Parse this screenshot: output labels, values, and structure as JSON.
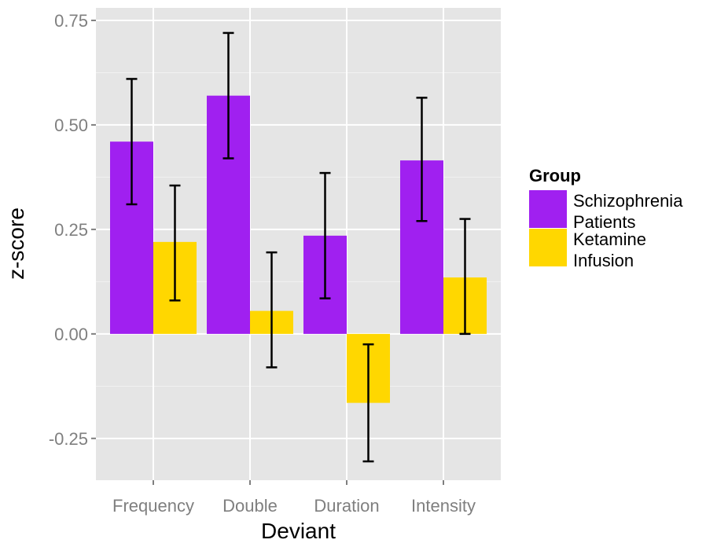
{
  "chart_data": {
    "type": "bar",
    "xlabel": "Deviant",
    "ylabel": "z-score",
    "categories": [
      "Frequency",
      "Double",
      "Duration",
      "Intensity"
    ],
    "ylim": [
      -0.35,
      0.78
    ],
    "yticks": [
      -0.25,
      0.0,
      0.25,
      0.5,
      0.75
    ],
    "ytick_labels": [
      "-0.25",
      "0.00",
      "0.25",
      "0.50",
      "0.75"
    ],
    "grid": true,
    "legend": {
      "title": "Group",
      "placement": "right"
    },
    "series": [
      {
        "name_lines": [
          "Schizophrenia",
          "Patients"
        ],
        "color": "#a020f0",
        "values": [
          0.46,
          0.57,
          0.235,
          0.415
        ],
        "error_low": [
          0.31,
          0.42,
          0.085,
          0.27
        ],
        "error_high": [
          0.61,
          0.72,
          0.385,
          0.565
        ]
      },
      {
        "name_lines": [
          "Ketamine",
          "Infusion"
        ],
        "color": "#ffd700",
        "values": [
          0.22,
          0.055,
          -0.165,
          0.135
        ],
        "error_low": [
          0.08,
          -0.08,
          -0.305,
          0.0
        ],
        "error_high": [
          0.355,
          0.195,
          -0.025,
          0.275
        ]
      }
    ]
  }
}
